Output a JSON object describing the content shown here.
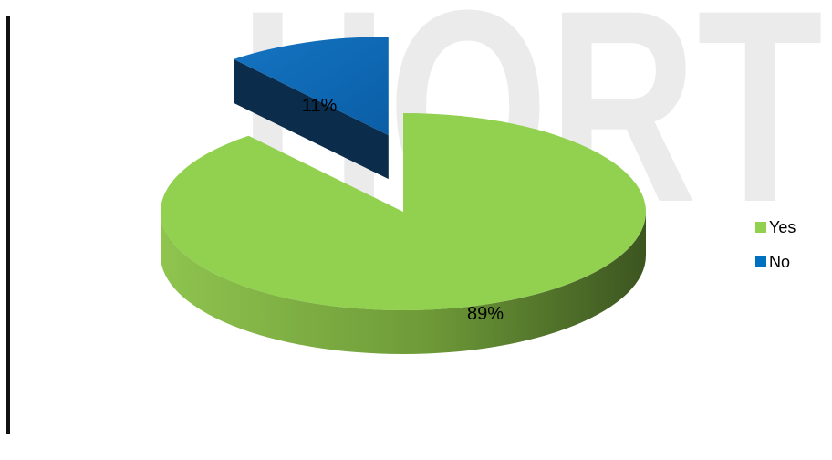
{
  "watermark": {
    "text": "HORT",
    "color": "#ebebeb"
  },
  "chart_data": {
    "type": "pie",
    "style": "3d-exploded",
    "categories": [
      "Yes",
      "No"
    ],
    "values": [
      89,
      11
    ],
    "data_labels": [
      "89%",
      "11%"
    ],
    "colors": [
      "#92D050",
      "#0070C0"
    ],
    "legend_position": "right"
  },
  "legend": {
    "items": [
      {
        "label": "Yes",
        "color": "#92D050"
      },
      {
        "label": "No",
        "color": "#0070C0"
      }
    ]
  }
}
